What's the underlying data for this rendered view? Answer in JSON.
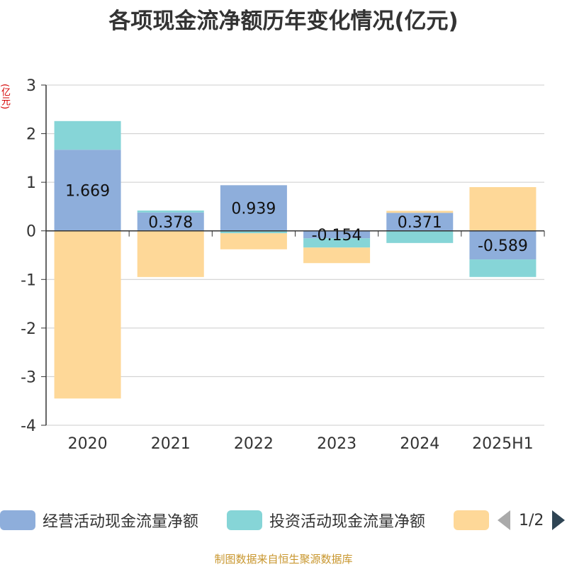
{
  "title": "各项现金流净额历年变化情况(亿元)",
  "unit_label": "(亿元)",
  "footer": "制图数据来自恒生聚源数据库",
  "legend": {
    "pager_text": "1/2"
  },
  "colors": {
    "operating": "#8eaedb",
    "investing": "#86d5d7",
    "financing": "#fed898",
    "axis": "#333333",
    "grid": "#cccccc"
  },
  "chart_data": {
    "type": "bar",
    "stacked": true,
    "categories": [
      "2020",
      "2021",
      "2022",
      "2023",
      "2024",
      "2025H1"
    ],
    "ylim": [
      -4,
      3
    ],
    "yticks": [
      3,
      2,
      1,
      0,
      -1,
      -2,
      -3,
      -4
    ],
    "grid": true,
    "legend_position": "bottom",
    "series": [
      {
        "name": "经营活动现金流量净额",
        "values": [
          1.669,
          0.378,
          0.939,
          -0.154,
          0.371,
          -0.589
        ],
        "labels": [
          "1.669",
          "0.378",
          "0.939",
          "-0.154",
          "0.371",
          "-0.589"
        ]
      },
      {
        "name": "投资活动现金流量净额",
        "values": [
          0.59,
          0.04,
          -0.05,
          -0.19,
          -0.25,
          -0.36
        ]
      },
      {
        "name": "",
        "values": [
          -3.45,
          -0.95,
          -0.33,
          -0.32,
          0.04,
          0.9
        ]
      }
    ]
  }
}
